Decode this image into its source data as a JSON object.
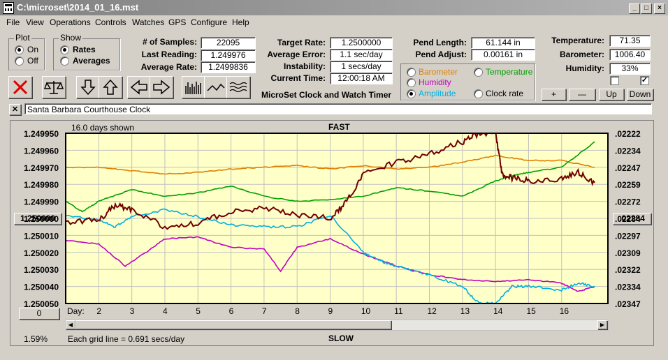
{
  "window": {
    "title": "C:\\microset\\2014_01_16.mst",
    "min_icon": "minimize-icon",
    "max_icon": "maximize-icon",
    "close_icon": "close-icon"
  },
  "menu": [
    "File",
    "View",
    "Operations",
    "Controls",
    "Watches",
    "GPS",
    "Configure",
    "Help"
  ],
  "plot_group": {
    "label": "Plot",
    "on": "On",
    "off": "Off",
    "selected": "On"
  },
  "show_group": {
    "label": "Show",
    "rates": "Rates",
    "averages": "Averages",
    "selected": "Rates"
  },
  "stats": {
    "samples_label": "# of Samples:",
    "samples": "22095",
    "last_label": "Last Reading:",
    "last": "1.249976",
    "avg_label": "Average Rate:",
    "avg": "1.2499836",
    "target_label": "Target Rate:",
    "target": "1.2500000",
    "err_label": "Average Error:",
    "err": "1.1 sec/day",
    "instab_label": "Instability:",
    "instab": "1 secs/day",
    "time_label": "Current Time:",
    "time": "12:00:18 AM",
    "pendlen_label": "Pend Length:",
    "pendlen": "61.144 in",
    "pendadj_label": "Pend Adjust:",
    "pendadj": "0.00161 in",
    "temp_label": "Temperature:",
    "temp": "71.35",
    "baro_label": "Barometer:",
    "baro": "1006.40",
    "hum_label": "Humidity:",
    "hum": "33%"
  },
  "app_name": "MicroSet Clock and Watch Timer",
  "overlays": [
    {
      "label": "Barometer",
      "color": "#e08000",
      "selected": false
    },
    {
      "label": "Temperature",
      "color": "#00a000",
      "selected": false
    },
    {
      "label": "Humidity",
      "color": "#c000c0",
      "selected": false
    },
    {
      "label": "Amplitude",
      "color": "#00b0e0",
      "selected": true
    },
    {
      "label": "Clock rate",
      "color": "#000000",
      "selected": false
    }
  ],
  "scale_buttons": {
    "plus": "+",
    "minus": "—",
    "up": "Up",
    "down": "Down"
  },
  "checkboxes": {
    "left": false,
    "right": true
  },
  "toolbar": {
    "icons": [
      "stop-icon",
      "balance-scale-icon",
      "arrow-down-icon",
      "arrow-up-icon",
      "arrow-left-icon",
      "arrow-right-icon",
      "bar-graph-icon",
      "line-graph-icon",
      "wave-graph-icon"
    ]
  },
  "clock_name": "Santa Barbara Courthouse Clock",
  "clock_close": "✕",
  "chart": {
    "days_shown": "16.0 days shown",
    "fast": "FAST",
    "slow": "SLOW",
    "grid_note": "Each grid line = 0.691 secs/day",
    "percent": "1.59%",
    "day_prefix": "Day:",
    "left_button": "1.250000",
    "right_button": ".02284",
    "bottom_button": "0",
    "bg": "#ffffc8"
  },
  "chart_data": {
    "type": "line",
    "x_label": "Day:",
    "x_ticks": [
      "2",
      "3",
      "4",
      "5",
      "6",
      "7",
      "8",
      "9",
      "10",
      "11",
      "12",
      "13",
      "14",
      "15",
      "16"
    ],
    "y_left_ticks": [
      "1.249950",
      "1.249960",
      "1.249970",
      "1.249980",
      "1.249990",
      "1.250000",
      "1.250010",
      "1.250020",
      "1.250030",
      "1.250040",
      "1.250050"
    ],
    "y_right_ticks": [
      ".02222",
      ".02234",
      ".02247",
      ".02259",
      ".02272",
      ".02284",
      ".02297",
      ".02309",
      ".02322",
      ".02334",
      ".02347"
    ],
    "ylim": [
      1.24995,
      1.25005
    ],
    "xlim": [
      1.0,
      17.4
    ],
    "series": [
      {
        "name": "Barometer",
        "color": "#e08000",
        "x": [
          1,
          2,
          3,
          4,
          5,
          6,
          7,
          8,
          9,
          10,
          11,
          12,
          13,
          14,
          15,
          16,
          17
        ],
        "y": [
          1.24997,
          1.24997,
          1.249972,
          1.249974,
          1.249973,
          1.249971,
          1.24997,
          1.249969,
          1.249971,
          1.249969,
          1.249971,
          1.24997,
          1.249967,
          1.249963,
          1.249966,
          1.249966,
          1.24997
        ]
      },
      {
        "name": "Temperature",
        "color": "#00a000",
        "x": [
          1,
          1.5,
          2,
          3,
          4,
          5,
          6,
          7,
          8,
          9,
          10,
          11,
          12,
          13,
          14,
          14.5,
          15,
          16,
          17
        ],
        "y": [
          1.24999,
          1.249996,
          1.24999,
          1.249983,
          1.249987,
          1.249985,
          1.249981,
          1.249987,
          1.24999,
          1.249989,
          1.249987,
          1.249982,
          1.249984,
          1.249987,
          1.249978,
          1.249975,
          1.249973,
          1.24997,
          1.249955
        ]
      },
      {
        "name": "Humidity",
        "color": "#c000c0",
        "x": [
          1,
          2,
          2.8,
          3.5,
          4,
          5,
          6,
          7,
          7.5,
          8,
          9,
          10,
          11,
          12,
          13,
          14,
          15,
          16,
          16.5,
          17
        ],
        "y": [
          1.250013,
          1.250015,
          1.250028,
          1.250019,
          1.250012,
          1.250011,
          1.250017,
          1.250018,
          1.250031,
          1.250017,
          1.250012,
          1.250021,
          1.250028,
          1.250033,
          1.250036,
          1.250037,
          1.250036,
          1.250038,
          1.250043,
          1.25004
        ]
      },
      {
        "name": "Amplitude",
        "color": "#00b0e0",
        "x": [
          1,
          2,
          2.5,
          3,
          4,
          5,
          6,
          7,
          8,
          9,
          10,
          10.5,
          11,
          12,
          13,
          13.5,
          14,
          14.5,
          15,
          16,
          16.5,
          17
        ],
        "y": [
          1.249998,
          1.250001,
          1.250005,
          1.249999,
          1.249995,
          1.249999,
          1.250004,
          1.250005,
          1.250005,
          1.249998,
          1.25002,
          1.250025,
          1.250028,
          1.250033,
          1.25004,
          1.25005,
          1.25005,
          1.25004,
          1.25004,
          1.250042,
          1.250038,
          1.25004
        ]
      },
      {
        "name": "Clock rate",
        "color": "#700000",
        "x": [
          1,
          2,
          2.5,
          3,
          4,
          5,
          6,
          7,
          8,
          9,
          9.5,
          10,
          11,
          12,
          13,
          13.5,
          14,
          14.2,
          14.5,
          15,
          16,
          16.5,
          17
        ],
        "y": [
          1.250002,
          1.250001,
          1.249992,
          1.249995,
          1.250005,
          1.250003,
          1.249996,
          1.249994,
          1.249998,
          1.25,
          1.24999,
          1.249974,
          1.249967,
          1.249962,
          1.249955,
          1.24995,
          1.24995,
          1.249974,
          1.249976,
          1.249978,
          1.249977,
          1.249973,
          1.249979
        ]
      }
    ]
  }
}
